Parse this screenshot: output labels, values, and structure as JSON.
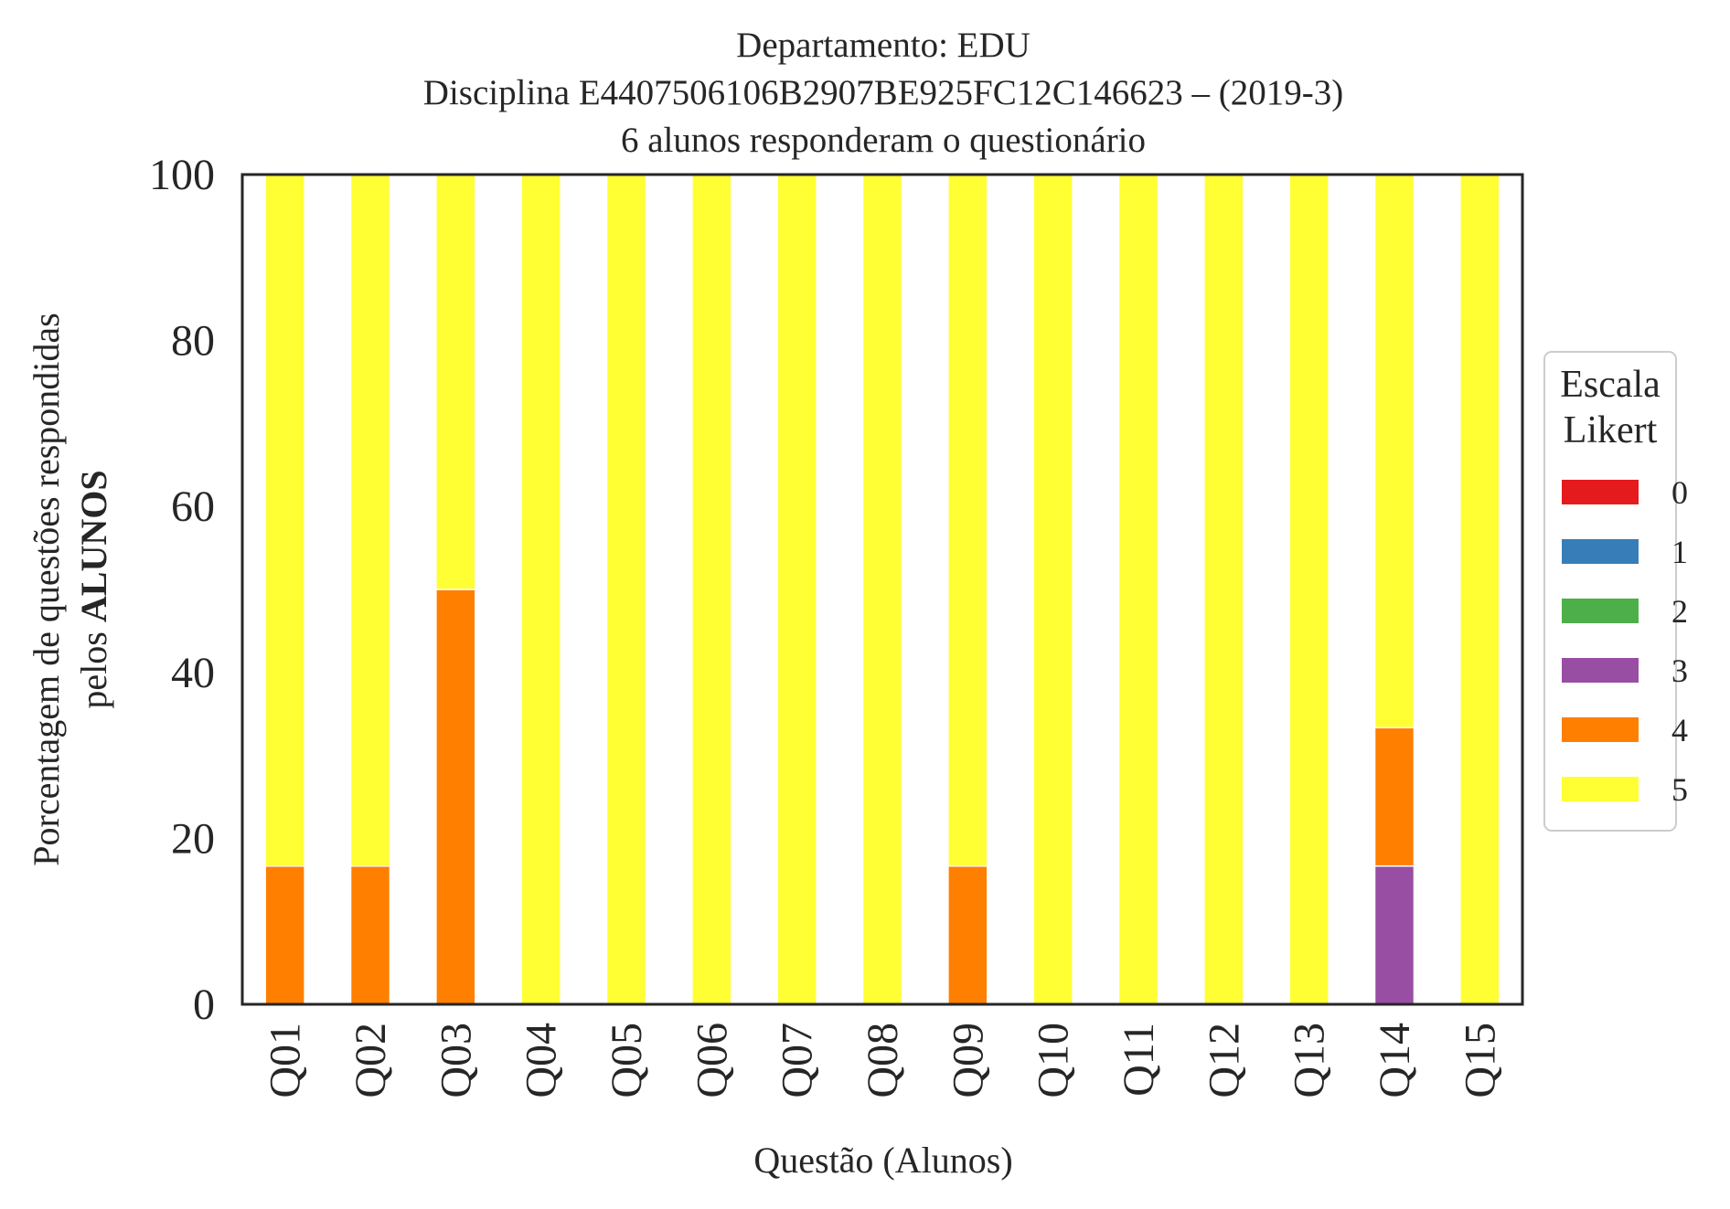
{
  "chart_data": {
    "type": "bar",
    "stacked": true,
    "title_lines": [
      "Departamento: EDU",
      "Disciplina E4407506106B2907BE925FC12C146623 – (2019-3)",
      "6 alunos responderam o questionário"
    ],
    "xlabel": "Questão (Alunos)",
    "ylabel_line1": "Porcentagem de questões respondidas",
    "ylabel_line2_prefix": "pelos ",
    "ylabel_line2_bold": "ALUNOS",
    "ylim": [
      0,
      100
    ],
    "yticks": [
      "0",
      "20",
      "40",
      "60",
      "80",
      "100"
    ],
    "grid": false,
    "legend_position": "right",
    "legend_title_lines": [
      "Escala",
      "Likert"
    ],
    "categories": [
      "Q01",
      "Q02",
      "Q03",
      "Q04",
      "Q05",
      "Q06",
      "Q07",
      "Q08",
      "Q09",
      "Q10",
      "Q11",
      "Q12",
      "Q13",
      "Q14",
      "Q15"
    ],
    "series": [
      {
        "name": "0",
        "color": "#e41a1c",
        "values": [
          0,
          0,
          0,
          0,
          0,
          0,
          0,
          0,
          0,
          0,
          0,
          0,
          0,
          0,
          0
        ]
      },
      {
        "name": "1",
        "color": "#377eb8",
        "values": [
          0,
          0,
          0,
          0,
          0,
          0,
          0,
          0,
          0,
          0,
          0,
          0,
          0,
          0,
          0
        ]
      },
      {
        "name": "2",
        "color": "#4daf4a",
        "values": [
          0,
          0,
          0,
          0,
          0,
          0,
          0,
          0,
          0,
          0,
          0,
          0,
          0,
          0,
          0
        ]
      },
      {
        "name": "3",
        "color": "#984ea3",
        "values": [
          0,
          0,
          0,
          0,
          0,
          0,
          0,
          0,
          0,
          0,
          0,
          0,
          0,
          16.67,
          0
        ]
      },
      {
        "name": "4",
        "color": "#ff7f00",
        "values": [
          16.67,
          16.67,
          50,
          0,
          0,
          0,
          0,
          0,
          16.67,
          0,
          0,
          0,
          0,
          16.67,
          0
        ]
      },
      {
        "name": "5",
        "color": "#ffff33",
        "values": [
          83.33,
          83.33,
          50,
          100,
          100,
          100,
          100,
          100,
          83.33,
          100,
          100,
          100,
          100,
          66.67,
          100
        ]
      }
    ]
  }
}
